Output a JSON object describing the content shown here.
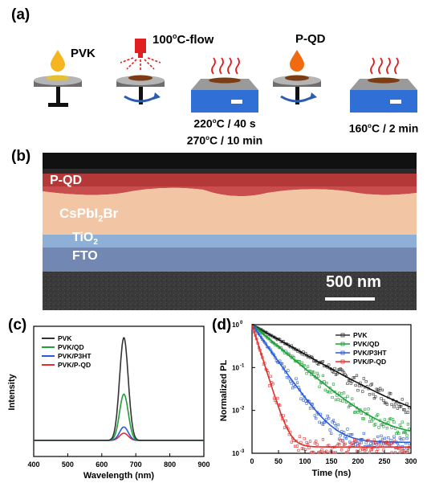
{
  "panels": {
    "a": "(a)",
    "b": "(b)",
    "c": "(c)",
    "d": "(d)"
  },
  "process": {
    "step1": "PVK",
    "step2_main": "100",
    "step2_sup": "o",
    "step2_rest": "C-flow",
    "step3_line1_main": "220",
    "step3_line1_sup": "o",
    "step3_line1_rest": "C / 40 s",
    "step3_line2_main": "270",
    "step3_line2_sup": "o",
    "step3_line2_rest": "C / 10 min",
    "step4": "P-QD",
    "step5_main": "160",
    "step5_sup": "o",
    "step5_rest": "C / 2 min"
  },
  "sem": {
    "layers": {
      "pqd": "P-QD",
      "cspb_main": "CsPbI",
      "cspb_sub": "2",
      "cspb_rest": "Br",
      "tio_main": "TiO",
      "tio_sub": "2",
      "fto": "FTO"
    },
    "scale_bar": "500 nm"
  },
  "chart_data": [
    {
      "type": "line",
      "panel": "c",
      "xlabel": "Wavelength (nm)",
      "ylabel": "Intensity",
      "xlim": [
        400,
        900
      ],
      "xticks": [
        "400",
        "500",
        "600",
        "700",
        "800",
        "900"
      ],
      "peak_x": 665,
      "series": [
        {
          "name": "PVK",
          "color": "#333333",
          "peak": 1.0
        },
        {
          "name": "PVK/QD",
          "color": "#1f9e3a",
          "peak": 0.45
        },
        {
          "name": "PVK/P3HT",
          "color": "#2a5bd7",
          "peak": 0.13
        },
        {
          "name": "PVK/P-QD",
          "color": "#e03030",
          "peak": 0.07
        }
      ]
    },
    {
      "type": "scatter",
      "panel": "d",
      "xlabel": "Time (ns)",
      "ylabel": "Normalized PL",
      "xlim": [
        0,
        300
      ],
      "ylim": [
        0.001,
        1
      ],
      "yscale": "log",
      "xticks": [
        "0",
        "50",
        "100",
        "150",
        "200",
        "250",
        "300"
      ],
      "yticks": [
        {
          "main": "10",
          "sup": "0"
        },
        {
          "main": "10",
          "sup": "-1"
        },
        {
          "main": "10",
          "sup": "-2"
        },
        {
          "main": "10",
          "sup": "-3"
        }
      ],
      "series": [
        {
          "name": "PVK",
          "color": "#333333",
          "tau_ns": 62,
          "floor": 0.004
        },
        {
          "name": "PVK/QD",
          "color": "#1f9e3a",
          "tau_ns": 42,
          "floor": 0.0025
        },
        {
          "name": "PVK/P3HT",
          "color": "#2a5bd7",
          "tau_ns": 25,
          "floor": 0.0018
        },
        {
          "name": "PVK/P-QD",
          "color": "#e03030",
          "tau_ns": 11,
          "floor": 0.0014
        }
      ]
    }
  ]
}
